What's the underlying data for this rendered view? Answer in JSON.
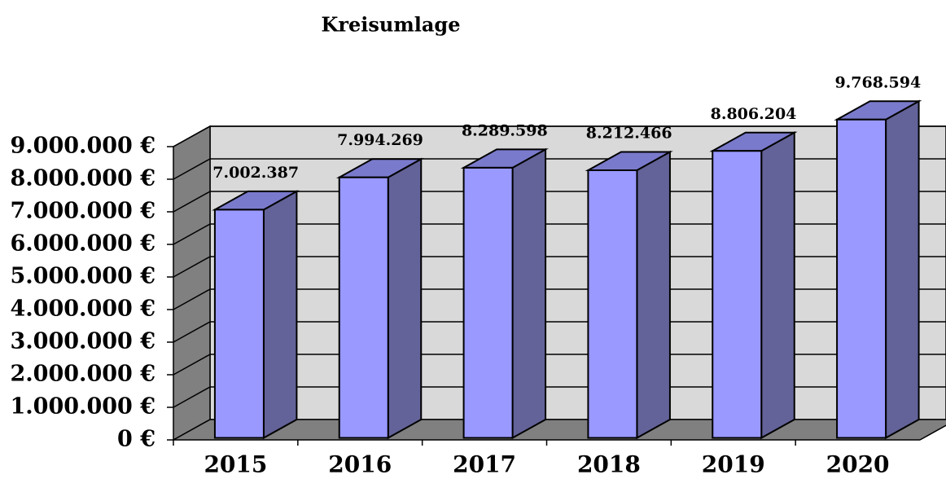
{
  "chart_data": {
    "type": "bar3d",
    "title": "Kreisumlage",
    "categories": [
      "2015",
      "2016",
      "2017",
      "2018",
      "2019",
      "2020"
    ],
    "values": [
      7002387,
      7994269,
      8289598,
      8212466,
      8806204,
      9768594
    ],
    "value_labels": [
      "7.002.387",
      "7.994.269",
      "8.289.598",
      "8.212.466",
      "8.806.204",
      "9.768.594"
    ],
    "color": "#9999ff",
    "ylim": [
      0,
      9000000
    ],
    "yticks": [
      {
        "value": 0,
        "label": "0 €"
      },
      {
        "value": 1000000,
        "label": "1.000.000 €"
      },
      {
        "value": 2000000,
        "label": "2.000.000 €"
      },
      {
        "value": 3000000,
        "label": "3.000.000 €"
      },
      {
        "value": 4000000,
        "label": "4.000.000 €"
      },
      {
        "value": 5000000,
        "label": "5.000.000 €"
      },
      {
        "value": 6000000,
        "label": "6.000.000 €"
      },
      {
        "value": 7000000,
        "label": "7.000.000 €"
      },
      {
        "value": 8000000,
        "label": "8.000.000 €"
      },
      {
        "value": 9000000,
        "label": "9.000.000 €"
      }
    ],
    "grid": true
  }
}
